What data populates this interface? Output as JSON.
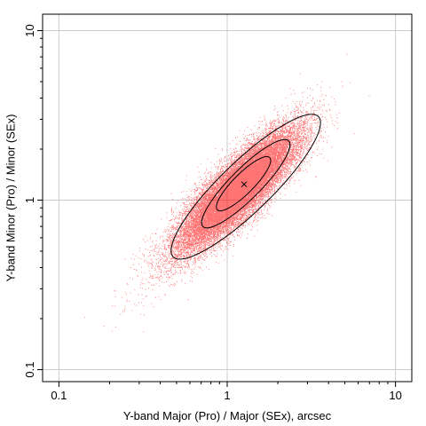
{
  "chart_data": {
    "type": "scatter",
    "title": "",
    "xlabel": "Y-band Major (Pro) / Major (SEx), arcsec",
    "ylabel": "Y-band Minor (Pro) / Minor (SEx)",
    "x_scale": "log",
    "y_scale": "log",
    "xlim": [
      0.08,
      12.5
    ],
    "ylim": [
      0.085,
      12.5
    ],
    "x_ticks": [
      {
        "value": 0.1,
        "label": "0.1"
      },
      {
        "value": 1,
        "label": "1"
      },
      {
        "value": 10,
        "label": "10"
      }
    ],
    "y_ticks": [
      {
        "value": 0.1,
        "label": "0.1"
      },
      {
        "value": 1,
        "label": "1"
      },
      {
        "value": 10,
        "label": "10"
      }
    ],
    "grid": true,
    "point_color": "#ff0000",
    "contour_color": "#000000",
    "density": {
      "center": [
        1.2,
        1.2
      ],
      "log_spread_major": 0.23,
      "log_spread_minor": 0.07,
      "tilt_deg": 45,
      "n_points": 26000
    },
    "contours": [
      {
        "level": "outer",
        "center": [
          1.29,
          1.2
        ],
        "major_extent_log": 0.6,
        "minor_extent_log": 0.15,
        "tilt_deg": 44
      },
      {
        "level": "middle",
        "center": [
          1.29,
          1.25
        ],
        "major_extent_log": 0.36,
        "minor_extent_log": 0.09,
        "tilt_deg": 45
      },
      {
        "level": "inner",
        "center": [
          1.25,
          1.25
        ],
        "major_extent_log": 0.22,
        "minor_extent_log": 0.06,
        "tilt_deg": 45
      }
    ],
    "marker": {
      "x": 1.26,
      "y": 1.24,
      "symbol": "x"
    }
  }
}
